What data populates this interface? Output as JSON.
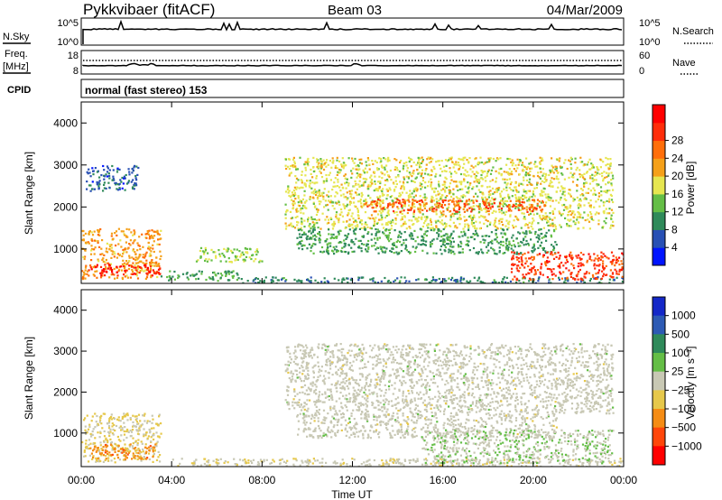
{
  "header": {
    "station": "Pykkvibaer (fitACF)",
    "beam": "Beam 03",
    "date": "04/Mar/2009"
  },
  "noise_panel": {
    "left_label": "N.Sky",
    "right_label": "N.Search",
    "left_ticks": [
      "10^5",
      "10^0"
    ],
    "right_ticks": [
      "10^5",
      "10^0"
    ]
  },
  "freq_panel": {
    "left_label_1": "Freq.",
    "left_label_2": "[MHz]",
    "right_label": "Nave",
    "left_ticks": [
      "18",
      "8"
    ],
    "right_ticks": [
      "60",
      "0"
    ]
  },
  "cpid_panel": {
    "label": "CPID",
    "mode": "normal (fast stereo) 153"
  },
  "power_panel": {
    "ylabel": "Slant Range [km]",
    "yticks": [
      "1000",
      "2000",
      "3000",
      "4000"
    ],
    "colorbar_label": "Power [dB]",
    "colorbar_ticks": [
      "4",
      "8",
      "12",
      "16",
      "20",
      "24",
      "28"
    ],
    "colorbar_colors": [
      "#0014ff",
      "#2850b4",
      "#2f8a5a",
      "#64be46",
      "#e6e650",
      "#f5a019",
      "#ff6e0a",
      "#ff2d0a",
      "#ff0000"
    ]
  },
  "velocity_panel": {
    "ylabel": "Slant Range [km]",
    "yticks": [
      "1000",
      "2000",
      "3000",
      "4000"
    ],
    "colorbar_label": "Velocity [m s⁻¹]",
    "colorbar_ticks": [
      "1000",
      "500",
      "100",
      "25",
      "−25",
      "−100",
      "−500",
      "−1000"
    ],
    "colorbar_colors": [
      "#1428c8",
      "#2d5ab4",
      "#2f8a5a",
      "#64be46",
      "#c8c8b4",
      "#e6c84b",
      "#f58c14",
      "#ff460a",
      "#ff0000"
    ]
  },
  "x_axis": {
    "ticks": [
      "00:00",
      "04:00",
      "08:00",
      "12:00",
      "16:00",
      "20:00",
      "00:00"
    ],
    "label": "Time UT"
  },
  "chart_data": {
    "type": "heatmap",
    "title": "Pykkvibaer (fitACF)  Beam 03  04/Mar/2009",
    "xlabel": "Time UT",
    "ylabel": "Slant Range [km]",
    "xlim_hours": [
      0,
      24
    ],
    "ylim_km": [
      180,
      4500
    ],
    "grid": false,
    "panels": [
      {
        "name": "Power",
        "units": "dB",
        "colorbar_range": [
          0,
          32
        ],
        "regions": [
          {
            "t0": 0.2,
            "t1": 2.5,
            "r_top": 3000,
            "r_bot": 2400,
            "value": 6
          },
          {
            "t0": 0.0,
            "t1": 3.5,
            "r_top": 1500,
            "r_bot": 300,
            "value": 20
          },
          {
            "t0": 0.3,
            "t1": 3.5,
            "r_top": 650,
            "r_bot": 380,
            "value": 29
          },
          {
            "t0": 3.5,
            "t1": 7.0,
            "r_top": 500,
            "r_bot": 260,
            "value": 10
          },
          {
            "t0": 5.0,
            "t1": 8.0,
            "r_top": 1050,
            "r_bot": 700,
            "value": 14
          },
          {
            "t0": 7.0,
            "t1": 24.0,
            "r_top": 350,
            "r_bot": 200,
            "value": 8
          },
          {
            "t0": 9.0,
            "t1": 23.5,
            "r_top": 3200,
            "r_bot": 1500,
            "value": 16
          },
          {
            "t0": 12.5,
            "t1": 20.5,
            "r_top": 2200,
            "r_bot": 1900,
            "value": 24
          },
          {
            "t0": 9.5,
            "t1": 21.0,
            "r_top": 1500,
            "r_bot": 900,
            "value": 10
          },
          {
            "t0": 19.0,
            "t1": 24.0,
            "r_top": 950,
            "r_bot": 280,
            "value": 26
          }
        ]
      },
      {
        "name": "Velocity",
        "units": "m s-1",
        "colorbar_range": [
          -1000,
          1000
        ],
        "regions": [
          {
            "t0": 0.0,
            "t1": 3.5,
            "r_top": 1500,
            "r_bot": 300,
            "value": -120
          },
          {
            "t0": 0.3,
            "t1": 3.3,
            "r_top": 750,
            "r_bot": 380,
            "value": -450
          },
          {
            "t0": 9.0,
            "t1": 23.5,
            "r_top": 3200,
            "r_bot": 1500,
            "value": 0
          },
          {
            "t0": 9.5,
            "t1": 21.0,
            "r_top": 1500,
            "r_bot": 900,
            "value": 0
          },
          {
            "t0": 4.0,
            "t1": 24.0,
            "r_top": 400,
            "r_bot": 200,
            "value": -60
          },
          {
            "t0": 15.0,
            "t1": 23.5,
            "r_top": 1100,
            "r_bot": 280,
            "value": 80
          }
        ]
      }
    ]
  }
}
